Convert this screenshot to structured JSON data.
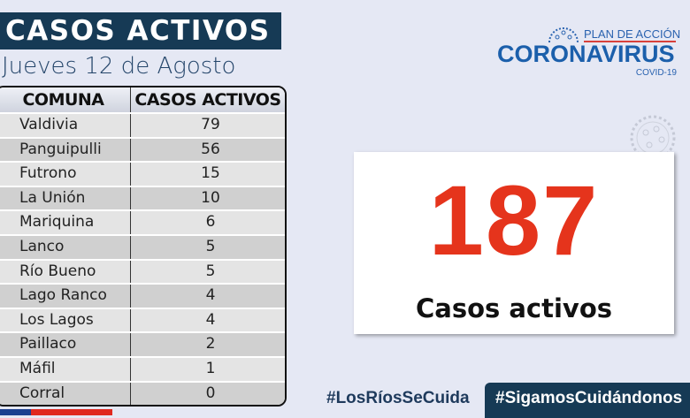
{
  "header": {
    "title": "CASOS ACTIVOS",
    "date": "Jueves 12 de Agosto"
  },
  "logo": {
    "plan": "PLAN DE ACCIÓN",
    "name": "CORONAVIRUS",
    "sub": "COVID-19"
  },
  "table": {
    "columns": [
      "COMUNA",
      "CASOS ACTIVOS"
    ],
    "rows": [
      {
        "comuna": "Valdivia",
        "casos": "79"
      },
      {
        "comuna": "Panguipulli",
        "casos": "56"
      },
      {
        "comuna": "Futrono",
        "casos": "15"
      },
      {
        "comuna": "La Unión",
        "casos": "10"
      },
      {
        "comuna": "Mariquina",
        "casos": "6"
      },
      {
        "comuna": "Lanco",
        "casos": "5"
      },
      {
        "comuna": "Río Bueno",
        "casos": "5"
      },
      {
        "comuna": "Lago Ranco",
        "casos": "4"
      },
      {
        "comuna": "Los Lagos",
        "casos": "4"
      },
      {
        "comuna": "Paillaco",
        "casos": "2"
      },
      {
        "comuna": "Máfil",
        "casos": "1"
      },
      {
        "comuna": "Corral",
        "casos": "0"
      }
    ]
  },
  "total": {
    "value": "187",
    "label": "Casos activos"
  },
  "hashtags": [
    "#LosRíosSeCuida",
    "#SigamosCuidándonos"
  ],
  "colors": {
    "navy": "#163a55",
    "red": "#e5341c",
    "blue": "#1b5fab"
  }
}
